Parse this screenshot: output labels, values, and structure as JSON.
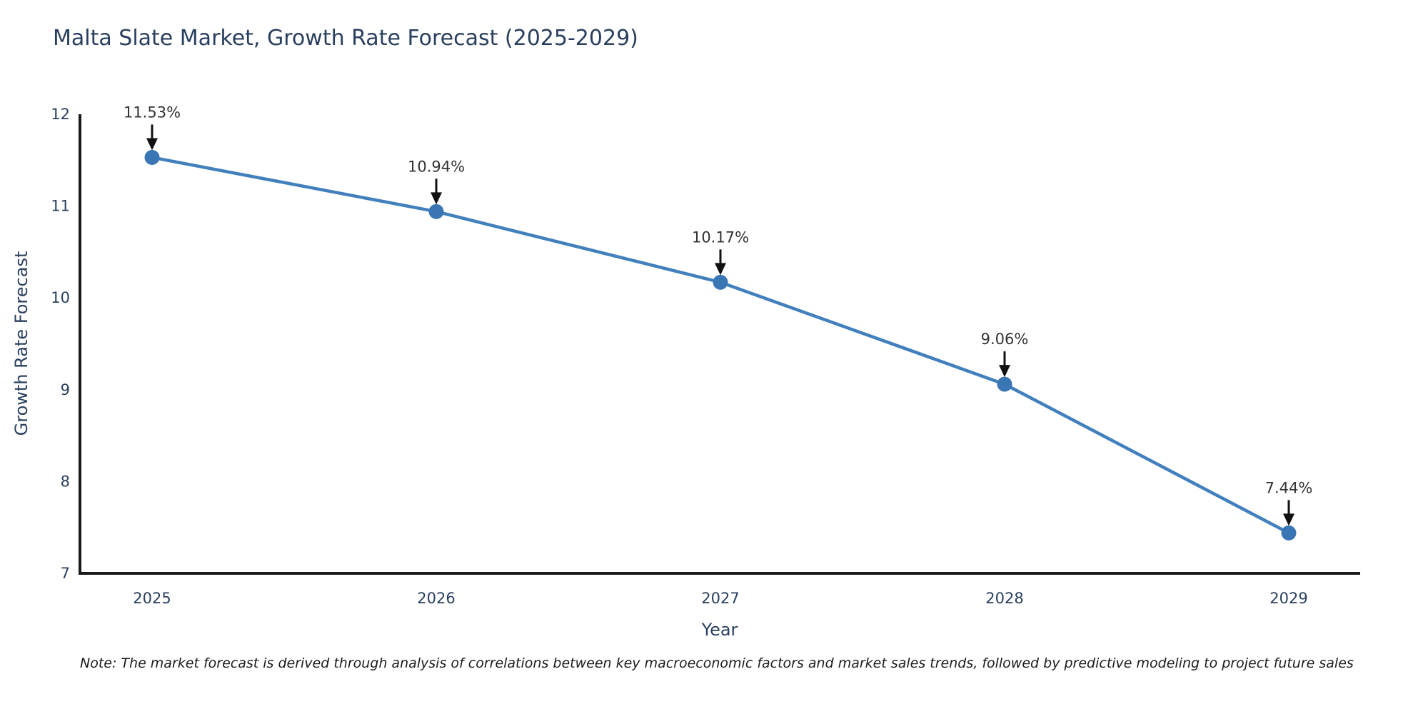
{
  "title": "Malta Slate Market, Growth Rate Forecast (2025-2029)",
  "note": "Note: The market forecast is derived through analysis of correlations between key macroeconomic factors and market sales trends, followed by predictive modeling to project future sales",
  "chart_data": {
    "type": "line",
    "title": "Malta Slate Market, Growth Rate Forecast (2025-2029)",
    "xlabel": "Year",
    "ylabel": "Growth Rate Forecast",
    "x": [
      2025,
      2026,
      2027,
      2028,
      2029
    ],
    "series": [
      {
        "name": "Growth Rate Forecast",
        "values": [
          11.53,
          10.94,
          10.17,
          9.06,
          7.44
        ]
      }
    ],
    "point_labels": [
      "11.53%",
      "10.94%",
      "10.17%",
      "9.06%",
      "7.44%"
    ],
    "ylim": [
      7,
      12
    ],
    "yticks": [
      7,
      8,
      9,
      10,
      11,
      12
    ],
    "xticks": [
      "2025",
      "2026",
      "2027",
      "2028",
      "2029"
    ],
    "grid": false,
    "legend": "none",
    "colors": {
      "line": "#4180bd",
      "marker": "#3a76b4",
      "axis": "#1a1a1a",
      "tick_text": "#2a3f5f",
      "annotation_text": "#333333",
      "arrow": "#111111"
    }
  }
}
